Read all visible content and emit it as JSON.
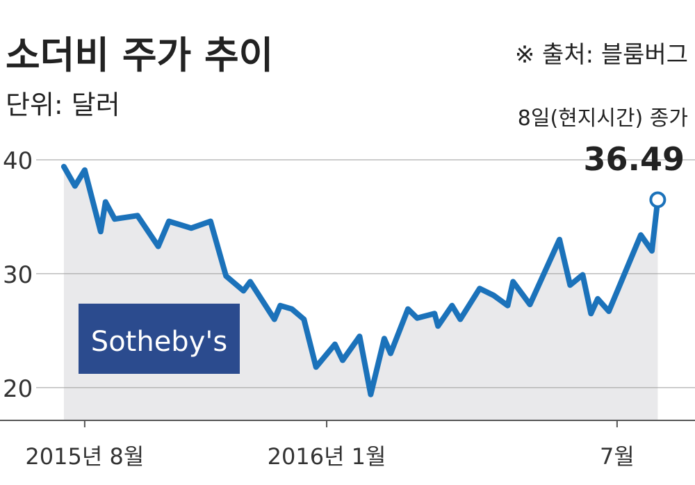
{
  "chart_data": {
    "type": "line",
    "title": "소더비 주가 추이",
    "subtitle": "단위: 달러",
    "source": "※ 출처: 블룸버그",
    "annotation": "8일(현지시간) 종가",
    "logo": "Sotheby's",
    "color": "#1b72ba",
    "area_color": "#e9e9eb",
    "grid": true,
    "x": [
      7.57,
      7.8,
      8.0,
      8.33,
      8.43,
      8.62,
      9.09,
      9.52,
      9.74,
      10.2,
      10.6,
      10.92,
      11.28,
      11.42,
      11.92,
      12.04,
      12.28,
      12.53,
      12.78,
      13.17,
      13.33,
      13.68,
      13.91,
      14.19,
      14.32,
      14.68,
      14.87,
      15.23,
      15.3,
      15.59,
      15.76,
      16.16,
      16.45,
      16.74,
      16.85,
      17.2,
      17.81,
      18.03,
      18.29,
      18.46,
      18.6,
      18.83,
      19.49,
      19.72,
      19.84
    ],
    "values": [
      39.4,
      37.7,
      39.1,
      33.7,
      36.3,
      34.8,
      35.1,
      32.4,
      34.6,
      34.0,
      34.6,
      29.8,
      28.5,
      29.3,
      26.0,
      27.2,
      26.9,
      26.0,
      21.8,
      23.8,
      22.4,
      24.5,
      19.4,
      24.3,
      23.0,
      26.9,
      26.1,
      26.5,
      25.4,
      27.2,
      26.0,
      28.7,
      28.1,
      27.2,
      29.3,
      27.3,
      33.0,
      29.0,
      29.9,
      26.5,
      27.8,
      26.7,
      33.4,
      32.0,
      36.49
    ],
    "xlim": [
      6.25,
      20.61
    ],
    "xticks": [
      {
        "value": 8,
        "label": "2015년 8월"
      },
      {
        "value": 13,
        "label": "2016년 1월"
      },
      {
        "value": 19,
        "label": "7월"
      }
    ],
    "ylim": [
      17,
      41
    ],
    "yticks": [
      20,
      30,
      40
    ]
  }
}
